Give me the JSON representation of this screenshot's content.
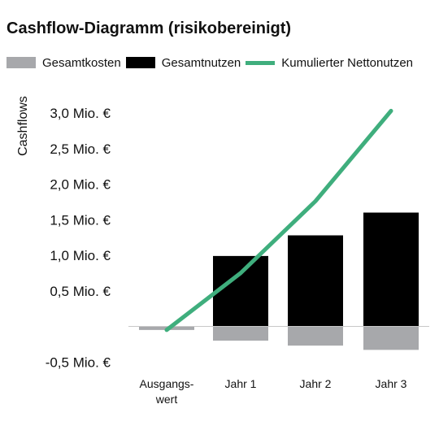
{
  "chart_data": {
    "type": "bar",
    "title": "Cashflow-Diagramm (risikobereinigt)",
    "ylabel": "Cashflows",
    "xlabel": "",
    "categories": [
      [
        "Ausgangs-",
        "wert"
      ],
      [
        "Jahr 1"
      ],
      [
        "Jahr 2"
      ],
      [
        "Jahr 3"
      ]
    ],
    "y_ticks": [
      {
        "value": 3.0,
        "label": "3,0 Mio. €"
      },
      {
        "value": 2.5,
        "label": "2,5 Mio. €"
      },
      {
        "value": 2.0,
        "label": "2,0 Mio. €"
      },
      {
        "value": 1.5,
        "label": "1,5 Mio. €"
      },
      {
        "value": 1.0,
        "label": "1,0 Mio. €"
      },
      {
        "value": 0.5,
        "label": "0,5 Mio. €"
      },
      {
        "value": -0.5,
        "label": "-0,5 Mio. €"
      }
    ],
    "ylim": [
      -0.5,
      3.0
    ],
    "grid": false,
    "legend_position": "top",
    "series": [
      {
        "name": "Gesamtkosten",
        "kind": "bar",
        "color": "#a7a8ab",
        "values": [
          -0.05,
          -0.2,
          -0.27,
          -0.33
        ]
      },
      {
        "name": "Gesamtnutzen",
        "kind": "bar",
        "color": "#000000",
        "values": [
          0,
          0.99,
          1.28,
          1.6
        ]
      },
      {
        "name": "Kumulierter Nettonutzen",
        "kind": "line",
        "color": "#3fae7d",
        "values": [
          -0.05,
          0.75,
          1.76,
          3.03
        ]
      }
    ]
  }
}
